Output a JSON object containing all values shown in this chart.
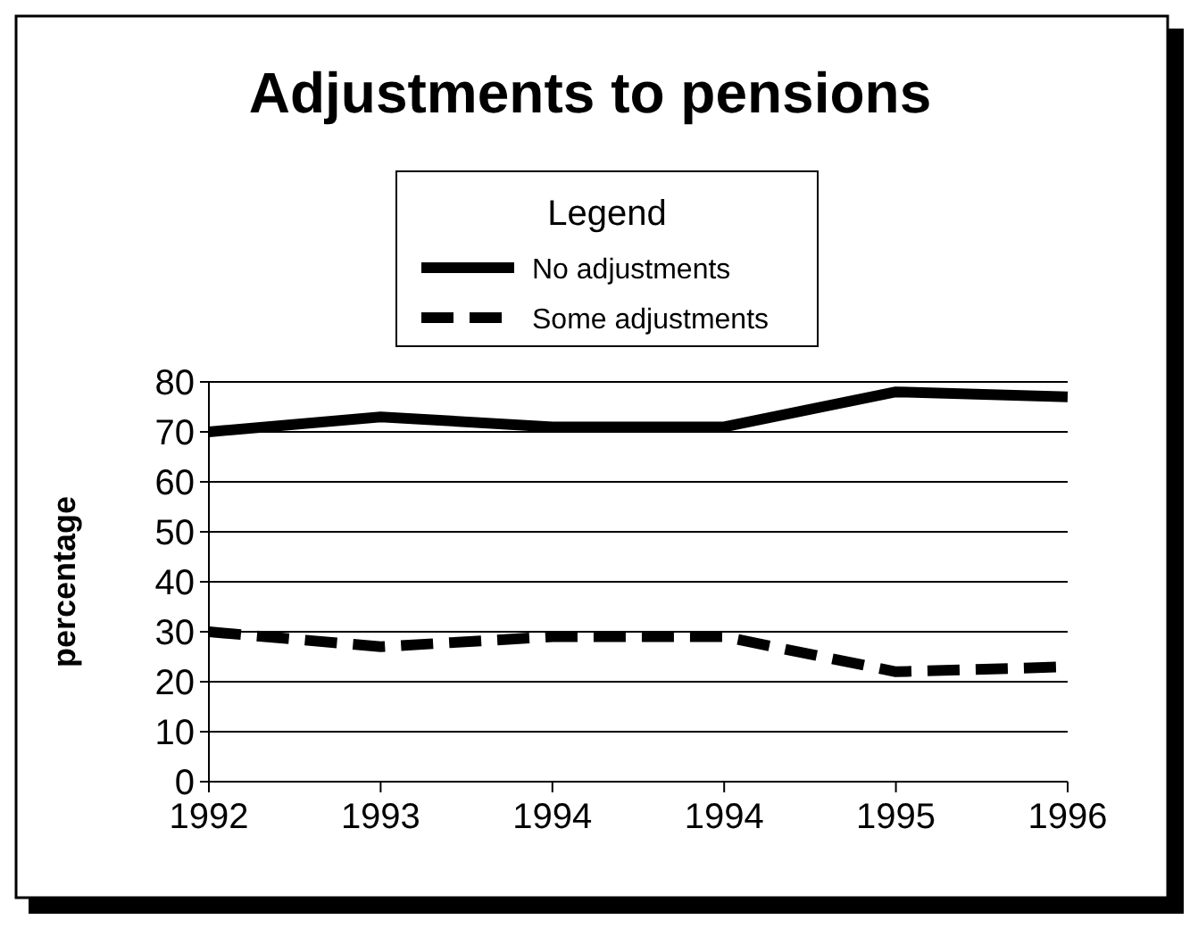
{
  "chart_data": {
    "type": "line",
    "title": "Adjustments to pensions",
    "ylabel": "percentage",
    "legend_title": "Legend",
    "legend": "top",
    "categories": [
      "1992",
      "1993",
      "1994",
      "1994",
      "1995",
      "1996"
    ],
    "series": [
      {
        "name": "No adjustments",
        "color": "#000000",
        "line_style": "solid",
        "values": [
          70,
          73,
          71,
          71,
          78,
          77
        ]
      },
      {
        "name": "Some adjustments",
        "color": "#000000",
        "line_style": "dashed",
        "values": [
          30,
          27,
          29,
          29,
          22,
          23
        ]
      }
    ],
    "ylim": [
      0,
      80
    ],
    "yticks": [
      0,
      10,
      20,
      30,
      40,
      50,
      60,
      70,
      80
    ],
    "grid": "y",
    "marker": "none"
  }
}
